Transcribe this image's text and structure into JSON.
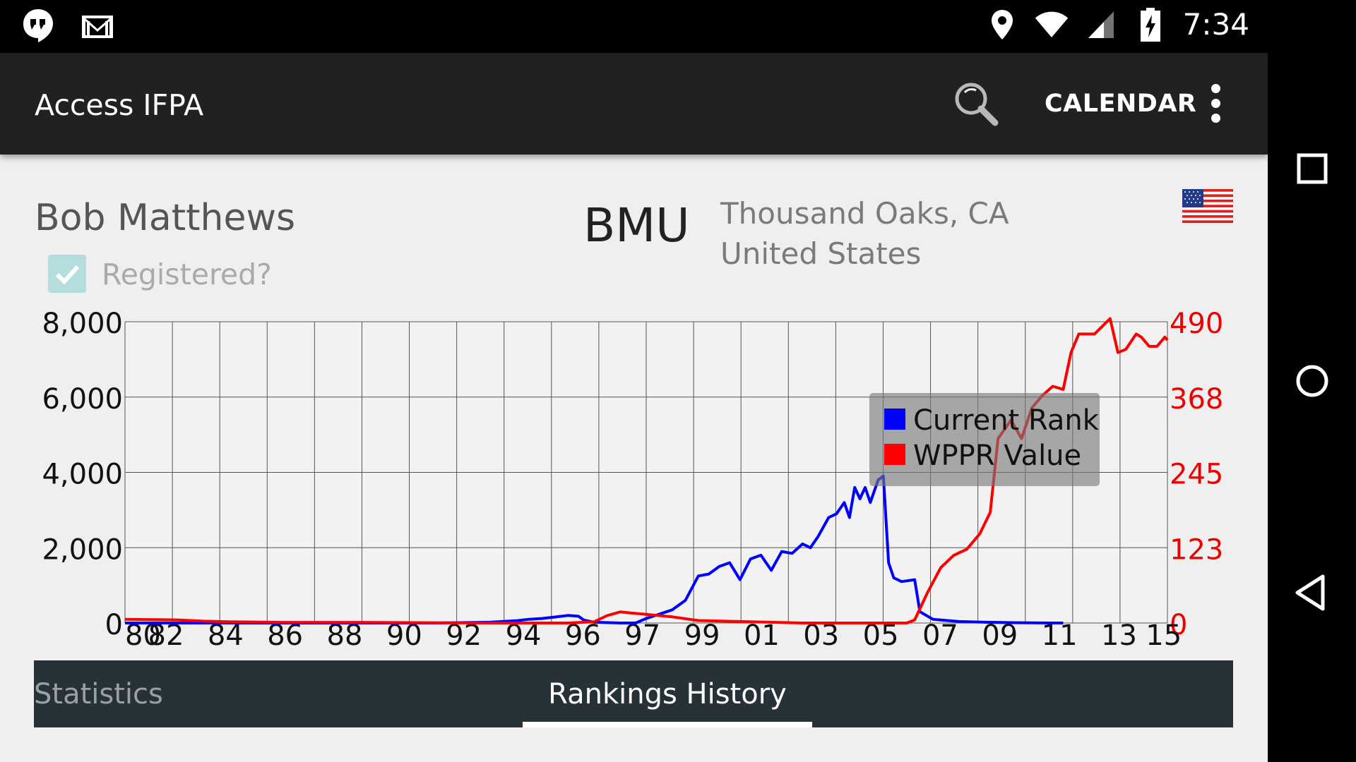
{
  "status_bar": {
    "time": "7:34",
    "left_icons": [
      "hangouts-icon",
      "gmail-icon"
    ],
    "right_icons": [
      "location-icon",
      "wifi-icon",
      "signal-icon",
      "battery-charging-icon"
    ]
  },
  "app_bar": {
    "title": "Access IFPA",
    "calendar_label": "CALENDAR",
    "icons": [
      "search-icon",
      "overflow-menu-icon"
    ]
  },
  "player": {
    "name": "Bob Matthews",
    "initials": "BMU",
    "city": "Thousand Oaks, CA",
    "country": "United States",
    "flag": "us-flag-icon",
    "registered_label": "Registered?",
    "registered": true
  },
  "chart_data": {
    "type": "line",
    "x_tick_labels": [
      "80",
      "82",
      "84",
      "86",
      "88",
      "90",
      "92",
      "94",
      "96",
      "97",
      "99",
      "01",
      "03",
      "05",
      "07",
      "09",
      "11",
      "13",
      "15"
    ],
    "y_left": {
      "ticks": [
        "0",
        "2,000",
        "4,000",
        "6,000",
        "8,000"
      ],
      "ylim": [
        0,
        8000
      ]
    },
    "y_right": {
      "ticks": [
        "0",
        "123",
        "245",
        "368",
        "490"
      ],
      "ylim": [
        0,
        490
      ]
    },
    "grid": true,
    "legend_position": "center-right",
    "series": [
      {
        "name": "Current Rank",
        "axis": "left",
        "color": "#0000ff",
        "points": [
          [
            0,
            0
          ],
          [
            8,
            0
          ],
          [
            12,
            0
          ],
          [
            14,
            20
          ],
          [
            15,
            60
          ],
          [
            15.5,
            100
          ],
          [
            16,
            120
          ],
          [
            16.5,
            160
          ],
          [
            17,
            200
          ],
          [
            17.4,
            180
          ],
          [
            17.6,
            80
          ],
          [
            18,
            20
          ],
          [
            19,
            0
          ],
          [
            19.6,
            0
          ],
          [
            20,
            120
          ],
          [
            21,
            350
          ],
          [
            21.5,
            600
          ],
          [
            22,
            1250
          ],
          [
            22.4,
            1300
          ],
          [
            22.8,
            1500
          ],
          [
            23.2,
            1600
          ],
          [
            23.6,
            1150
          ],
          [
            24,
            1700
          ],
          [
            24.4,
            1800
          ],
          [
            24.8,
            1400
          ],
          [
            25.2,
            1900
          ],
          [
            25.6,
            1850
          ],
          [
            26,
            2100
          ],
          [
            26.3,
            2000
          ],
          [
            26.6,
            2300
          ],
          [
            27,
            2800
          ],
          [
            27.3,
            2900
          ],
          [
            27.6,
            3200
          ],
          [
            27.8,
            2800
          ],
          [
            28,
            3600
          ],
          [
            28.2,
            3300
          ],
          [
            28.4,
            3600
          ],
          [
            28.6,
            3200
          ],
          [
            28.9,
            3800
          ],
          [
            29.1,
            3900
          ],
          [
            29.3,
            1600
          ],
          [
            29.5,
            1200
          ],
          [
            29.8,
            1100
          ],
          [
            30.3,
            1150
          ],
          [
            30.5,
            300
          ],
          [
            31,
            100
          ],
          [
            32,
            40
          ],
          [
            33,
            20
          ],
          [
            34,
            10
          ],
          [
            35.5,
            0
          ],
          [
            36,
            0
          ]
        ]
      },
      {
        "name": "WPPR Value",
        "axis": "right",
        "color": "#ff0000",
        "points": [
          [
            0,
            6
          ],
          [
            2,
            5
          ],
          [
            3,
            3
          ],
          [
            4,
            2
          ],
          [
            6,
            1
          ],
          [
            9,
            1
          ],
          [
            14,
            0
          ],
          [
            17,
            0
          ],
          [
            18,
            2
          ],
          [
            18.5,
            12
          ],
          [
            19,
            18
          ],
          [
            20,
            14
          ],
          [
            21,
            10
          ],
          [
            22,
            4
          ],
          [
            23,
            3
          ],
          [
            24,
            2
          ],
          [
            25,
            1
          ],
          [
            26,
            0
          ],
          [
            29,
            0
          ],
          [
            30,
            0
          ],
          [
            30.3,
            5
          ],
          [
            30.8,
            50
          ],
          [
            31.3,
            90
          ],
          [
            31.8,
            110
          ],
          [
            32.3,
            120
          ],
          [
            32.8,
            145
          ],
          [
            33.2,
            180
          ],
          [
            33.5,
            300
          ],
          [
            34,
            330
          ],
          [
            34.4,
            300
          ],
          [
            34.8,
            350
          ],
          [
            35.2,
            370
          ],
          [
            35.6,
            385
          ],
          [
            36,
            380
          ],
          [
            36.3,
            440
          ],
          [
            36.6,
            470
          ],
          [
            37.2,
            470
          ],
          [
            37.8,
            495
          ],
          [
            38.1,
            440
          ],
          [
            38.4,
            445
          ],
          [
            38.8,
            470
          ],
          [
            39,
            465
          ],
          [
            39.3,
            450
          ],
          [
            39.6,
            450
          ],
          [
            39.9,
            465
          ],
          [
            40,
            460
          ]
        ]
      }
    ]
  },
  "tabs": [
    {
      "label": "Statistics",
      "selected": false
    },
    {
      "label": "Rankings History",
      "selected": true
    }
  ],
  "nav_bar": [
    "recents-icon",
    "home-icon",
    "back-icon"
  ]
}
